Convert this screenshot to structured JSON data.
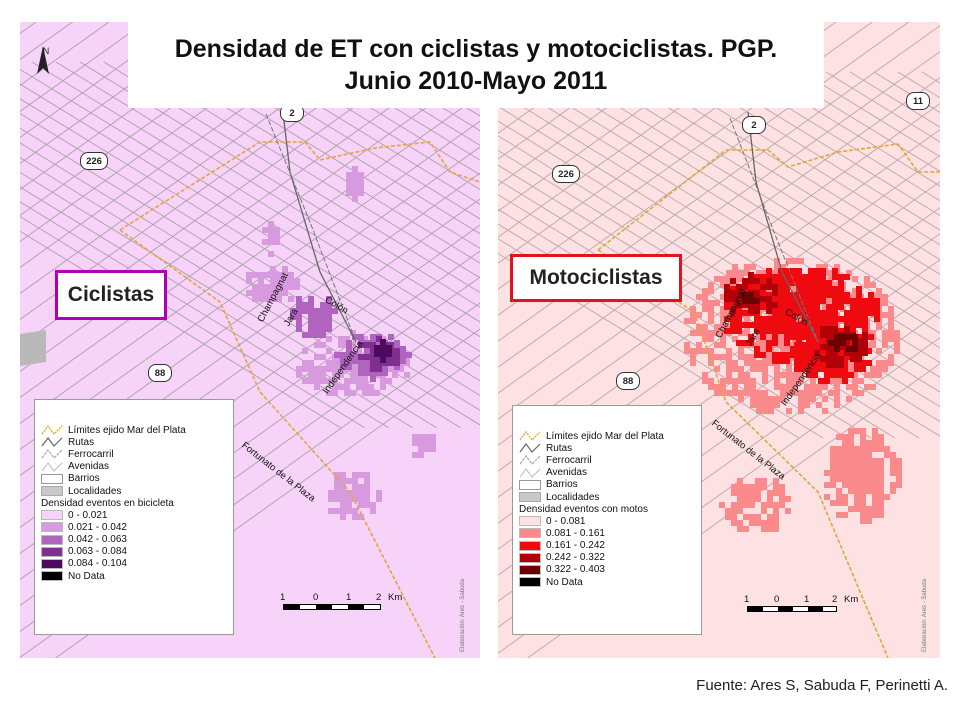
{
  "title": {
    "line1": "Densidad de ET con  ciclistas  y motociclistas. PGP.",
    "line2": "Junio 2010-Mayo 2011"
  },
  "source": "Fuente: Ares S, Sabuda F, Perinetti A.",
  "colors": {
    "left_background": "#f7d2f9",
    "right_background": "#fde1e3",
    "left_tag_border": "#b000b6",
    "right_tag_border": "#e0141e",
    "ejido_line": "#e0a73a",
    "streets": "#a9a2a8"
  },
  "maps": {
    "left": {
      "tag": "Ciclistas",
      "north": "N",
      "shields": {
        "r2": "2",
        "r226": "226",
        "r88": "88"
      },
      "streets": {
        "champagnat": "Champagnat",
        "colon": "Colón",
        "jara": "Jara",
        "independencia": "Independencia",
        "fortunato": "Fortunato de la Plaza"
      },
      "legend": {
        "items": [
          "Límites ejido Mar del Plata",
          "Rutas",
          "Ferrocarril",
          "Avenidas",
          "Barrios",
          "Localidades"
        ],
        "heading": "Densidad eventos en bicicleta",
        "classes": [
          {
            "label": "0 - 0.021",
            "color": "#f7d2f9"
          },
          {
            "label": "0.021 - 0.042",
            "color": "#d89ade"
          },
          {
            "label": "0.042 - 0.063",
            "color": "#b163c0"
          },
          {
            "label": "0.063 - 0.084",
            "color": "#7e2f90"
          },
          {
            "label": "0.084 - 0.104",
            "color": "#4e0a60"
          },
          {
            "label": "No Data",
            "color": "#000000"
          }
        ]
      },
      "scale": {
        "ticks": [
          "1",
          "0",
          "1",
          "2"
        ],
        "unit": "Km"
      },
      "credit": "Elaboración: Ares - Sabuda"
    },
    "right": {
      "tag": "Motociclistas",
      "shields": {
        "r2": "2",
        "r11": "11",
        "r226": "226",
        "r88": "88"
      },
      "streets": {
        "champagnat": "Champagnat",
        "colon": "Colón",
        "jara": "Jara",
        "independencia": "Independencia",
        "fortunato": "Fortunato de la Plaza"
      },
      "legend": {
        "items": [
          "Límites ejido Mar del Plata",
          "Rutas",
          "Ferrocarril",
          "Avenidas",
          "Barrios",
          "Localidades"
        ],
        "heading": "Densidad eventos con motos",
        "classes": [
          {
            "label": "0 - 0.081",
            "color": "#fde1e3"
          },
          {
            "label": "0.081 - 0.161",
            "color": "#fa8a8c"
          },
          {
            "label": "0.161 - 0.242",
            "color": "#ee0a0e"
          },
          {
            "label": "0.242 - 0.322",
            "color": "#b20008"
          },
          {
            "label": "0.322 - 0.403",
            "color": "#6a0004"
          },
          {
            "label": "No Data",
            "color": "#000000"
          }
        ]
      },
      "scale": {
        "ticks": [
          "1",
          "0",
          "1",
          "2"
        ],
        "unit": "Km"
      },
      "credit": "Elaboración: Ares - Sabuda"
    }
  }
}
